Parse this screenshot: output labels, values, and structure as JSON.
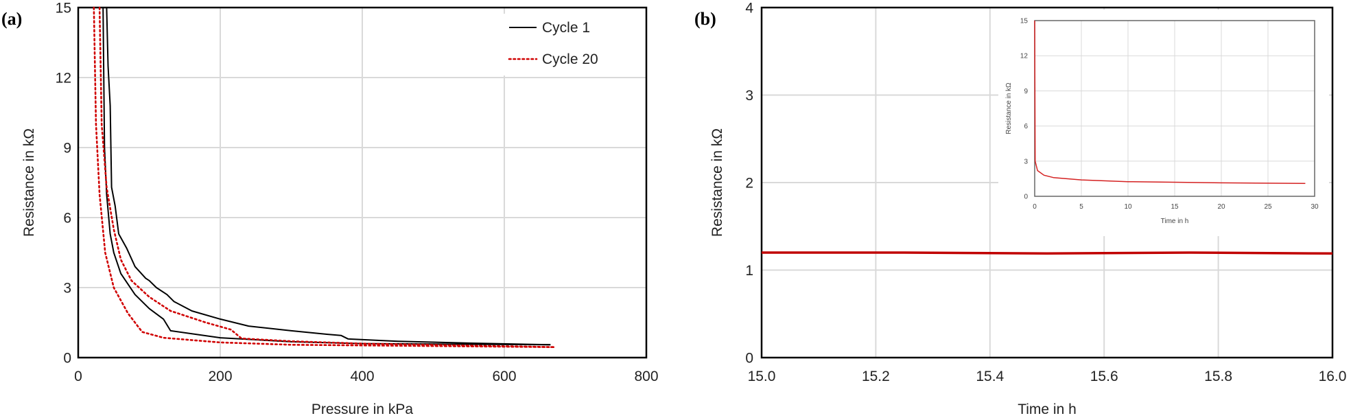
{
  "chart_data": [
    {
      "type": "line",
      "panel_label": "(a)",
      "xlabel": "Pressure in kPa",
      "ylabel": "Resistance in kΩ",
      "xlim": [
        0,
        800
      ],
      "ylim": [
        0,
        15
      ],
      "xticks": [
        "0",
        "200",
        "400",
        "600",
        "800"
      ],
      "yticks": [
        "0",
        "3",
        "6",
        "9",
        "12",
        "15"
      ],
      "grid": true,
      "legend_position": "top-right",
      "series": [
        {
          "name": "Cycle 1",
          "color": "#000000",
          "style": "solid",
          "branches": [
            [
              [
                40,
                15
              ],
              [
                42,
                12.5
              ],
              [
                45,
                10.8
              ],
              [
                47,
                7.3
              ],
              [
                52,
                6.5
              ],
              [
                57,
                5.3
              ],
              [
                68,
                4.7
              ],
              [
                80,
                3.9
              ],
              [
                95,
                3.4
              ],
              [
                100,
                3.3
              ],
              [
                110,
                3.0
              ],
              [
                125,
                2.7
              ],
              [
                135,
                2.4
              ],
              [
                160,
                2.0
              ],
              [
                200,
                1.65
              ],
              [
                240,
                1.35
              ],
              [
                300,
                1.15
              ],
              [
                350,
                1.0
              ],
              [
                370,
                0.95
              ],
              [
                380,
                0.8
              ],
              [
                450,
                0.7
              ],
              [
                550,
                0.62
              ],
              [
                665,
                0.55
              ]
            ],
            [
              [
                35,
                15
              ],
              [
                37,
                9
              ],
              [
                40,
                7
              ],
              [
                45,
                5.3
              ],
              [
                50,
                4.5
              ],
              [
                60,
                3.6
              ],
              [
                80,
                2.7
              ],
              [
                100,
                2.1
              ],
              [
                120,
                1.65
              ],
              [
                130,
                1.15
              ],
              [
                200,
                0.85
              ],
              [
                300,
                0.68
              ],
              [
                400,
                0.6
              ],
              [
                665,
                0.55
              ]
            ]
          ]
        },
        {
          "name": "Cycle 20",
          "color": "#d00000",
          "style": "dotted",
          "branches": [
            [
              [
                30,
                15
              ],
              [
                33,
                10
              ],
              [
                40,
                7.3
              ],
              [
                50,
                5.5
              ],
              [
                60,
                4.2
              ],
              [
                75,
                3.3
              ],
              [
                100,
                2.6
              ],
              [
                130,
                2.0
              ],
              [
                180,
                1.5
              ],
              [
                215,
                1.2
              ],
              [
                230,
                0.82
              ],
              [
                300,
                0.7
              ],
              [
                400,
                0.6
              ],
              [
                670,
                0.45
              ]
            ],
            [
              [
                22,
                15
              ],
              [
                25,
                10
              ],
              [
                30,
                7
              ],
              [
                38,
                4.5
              ],
              [
                50,
                3.0
              ],
              [
                70,
                1.9
              ],
              [
                90,
                1.1
              ],
              [
                120,
                0.85
              ],
              [
                200,
                0.65
              ],
              [
                300,
                0.55
              ],
              [
                670,
                0.45
              ]
            ]
          ]
        }
      ]
    },
    {
      "type": "line",
      "panel_label": "(b)",
      "xlabel": "Time in h",
      "ylabel": "Resistance in kΩ",
      "xlim": [
        15.0,
        16.0
      ],
      "ylim": [
        0,
        4
      ],
      "xticks": [
        "15.0",
        "15.2",
        "15.4",
        "15.6",
        "15.8",
        "16.0"
      ],
      "yticks": [
        "0",
        "1",
        "2",
        "3",
        "4"
      ],
      "grid": true,
      "series": [
        {
          "color": "#c00000",
          "points": [
            [
              15.0,
              1.2
            ],
            [
              15.25,
              1.2
            ],
            [
              15.5,
              1.19
            ],
            [
              15.75,
              1.2
            ],
            [
              16.0,
              1.19
            ]
          ]
        }
      ],
      "inset": {
        "type": "line",
        "xlabel": "Time in h",
        "ylabel": "Resistance in kΩ",
        "xlim": [
          0,
          30
        ],
        "ylim": [
          0,
          15
        ],
        "xticks": [
          "0",
          "5",
          "10",
          "15",
          "20",
          "25",
          "30"
        ],
        "yticks": [
          "0",
          "3",
          "6",
          "9",
          "12",
          "15"
        ],
        "grid": true,
        "series": [
          {
            "color": "#d42020",
            "points": [
              [
                0,
                15
              ],
              [
                0.05,
                3
              ],
              [
                0.3,
                2.2
              ],
              [
                1,
                1.8
              ],
              [
                2,
                1.6
              ],
              [
                5,
                1.4
              ],
              [
                10,
                1.25
              ],
              [
                15,
                1.2
              ],
              [
                20,
                1.15
              ],
              [
                25,
                1.12
              ],
              [
                29,
                1.1
              ]
            ]
          }
        ]
      }
    }
  ]
}
